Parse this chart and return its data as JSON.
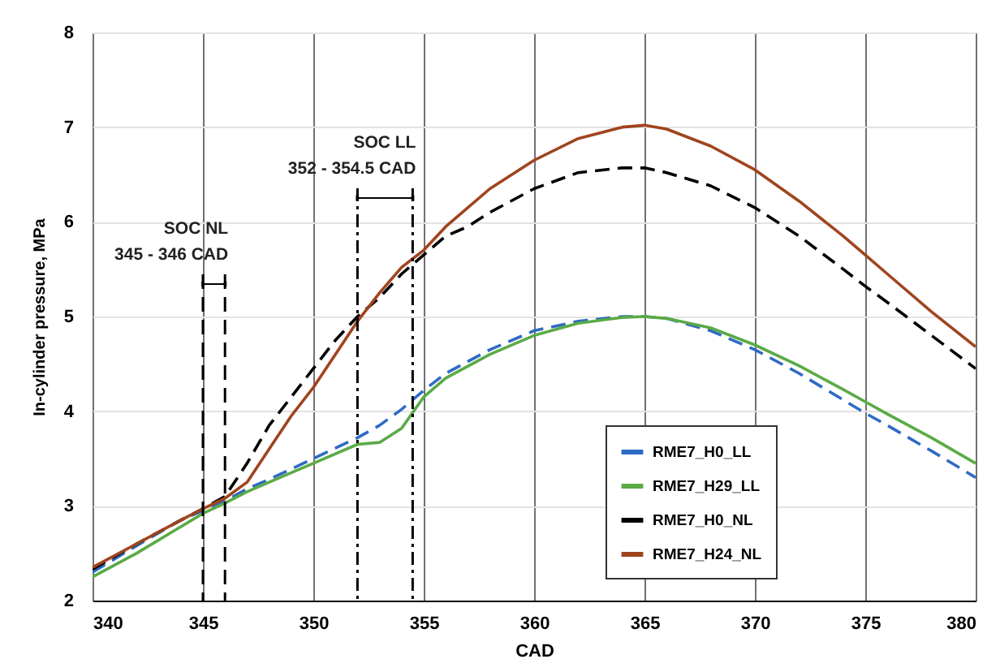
{
  "chart_data": {
    "type": "line",
    "xlabel": "CAD",
    "ylabel": "In-cylinder pressure, MPa",
    "xlim": [
      340,
      380
    ],
    "ylim": [
      2,
      8
    ],
    "xticks": [
      340,
      345,
      350,
      355,
      360,
      365,
      370,
      375,
      380
    ],
    "yticks": [
      2,
      3,
      4,
      5,
      6,
      7,
      8
    ],
    "grid": true,
    "legend": "bottom right",
    "marker": "none",
    "series": [
      {
        "name": "RME7_H0_LL",
        "color": "#2e6bc4",
        "line_style": "dashed",
        "x": [
          340,
          342,
          344,
          345,
          346,
          347,
          348,
          350,
          352,
          353,
          354,
          355,
          356,
          358,
          360,
          362,
          364,
          365,
          366,
          368,
          370,
          372,
          374,
          375,
          376,
          378,
          380
        ],
        "values": [
          2.3,
          2.58,
          2.85,
          2.95,
          3.05,
          3.18,
          3.28,
          3.5,
          3.72,
          3.85,
          4.02,
          4.22,
          4.4,
          4.65,
          4.85,
          4.95,
          5.0,
          5.0,
          4.98,
          4.85,
          4.65,
          4.4,
          4.12,
          3.98,
          3.85,
          3.58,
          3.3
        ]
      },
      {
        "name": "RME7_H29_LL",
        "color": "#5aab46",
        "line_style": "solid",
        "x": [
          340,
          342,
          344,
          345,
          346,
          347,
          348,
          350,
          352,
          353,
          354,
          355,
          356,
          358,
          360,
          362,
          364,
          365,
          366,
          368,
          370,
          372,
          374,
          375,
          376,
          378,
          380
        ],
        "values": [
          2.25,
          2.5,
          2.78,
          2.92,
          3.03,
          3.15,
          3.25,
          3.45,
          3.65,
          3.67,
          3.82,
          4.15,
          4.35,
          4.6,
          4.8,
          4.93,
          4.99,
          5.0,
          4.98,
          4.88,
          4.7,
          4.48,
          4.23,
          4.1,
          3.97,
          3.72,
          3.45
        ]
      },
      {
        "name": "RME7_H0_NL",
        "color": "#000000",
        "line_style": "dashed",
        "x": [
          340,
          342,
          344,
          345,
          346,
          347,
          348,
          349,
          350,
          351,
          352,
          353,
          354,
          355,
          356,
          357,
          358,
          360,
          362,
          364,
          365,
          366,
          368,
          370,
          372,
          374,
          375,
          376,
          378,
          380
        ],
        "values": [
          2.33,
          2.6,
          2.85,
          2.97,
          3.1,
          3.45,
          3.85,
          4.15,
          4.45,
          4.75,
          5.0,
          5.2,
          5.45,
          5.65,
          5.85,
          5.95,
          6.1,
          6.35,
          6.52,
          6.57,
          6.57,
          6.52,
          6.38,
          6.15,
          5.85,
          5.5,
          5.32,
          5.15,
          4.8,
          4.45
        ]
      },
      {
        "name": "RME7_H24_NL",
        "color": "#a0441e",
        "line_style": "solid",
        "x": [
          340,
          342,
          344,
          345,
          346,
          347,
          348,
          349,
          350,
          351,
          352,
          353,
          354,
          355,
          356,
          358,
          360,
          362,
          364,
          365,
          366,
          368,
          370,
          372,
          374,
          375,
          376,
          378,
          380
        ],
        "values": [
          2.35,
          2.6,
          2.85,
          2.97,
          3.08,
          3.25,
          3.6,
          3.95,
          4.25,
          4.6,
          4.95,
          5.25,
          5.52,
          5.7,
          5.95,
          6.35,
          6.65,
          6.88,
          7.0,
          7.02,
          6.98,
          6.8,
          6.55,
          6.22,
          5.85,
          5.65,
          5.45,
          5.05,
          4.68
        ]
      }
    ],
    "ref_lines": [
      {
        "axis": "x",
        "value": 345,
        "line_style": "dashed"
      },
      {
        "axis": "x",
        "value": 346,
        "line_style": "dashed"
      },
      {
        "axis": "x",
        "value": 352,
        "line_style": "dashdot"
      },
      {
        "axis": "x",
        "value": 354.5,
        "line_style": "dashdot"
      }
    ],
    "annotations": [
      "SOC NL",
      "345 - 346 CAD",
      "SOC LL",
      "352 - 354.5 CAD"
    ]
  }
}
